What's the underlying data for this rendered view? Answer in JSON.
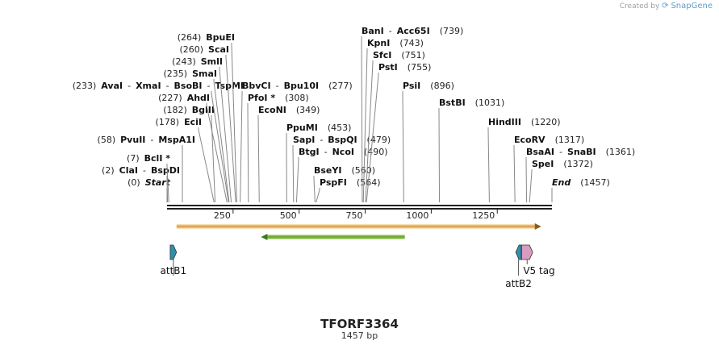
{
  "credit": {
    "prefix": "Created by",
    "brand": "SnapGene"
  },
  "plasmid": {
    "name": "TFORF3364",
    "length_label": "1457 bp",
    "length": 1457
  },
  "ruler": {
    "ticks": [
      250,
      500,
      750,
      1000,
      1250
    ]
  },
  "site_rows": [
    {
      "anchor": 207,
      "parts": [
        {
          "t": "(0)",
          "k": "pos"
        },
        {
          "t": "Start",
          "k": "italic"
        }
      ],
      "positions": [
        0
      ]
    },
    {
      "anchor": 207,
      "parts": [
        {
          "t": "(2)",
          "k": "pos"
        },
        {
          "t": "ClaI",
          "k": "name"
        },
        {
          "t": "-",
          "k": "sep"
        },
        {
          "t": "BspDI",
          "k": "name"
        }
      ],
      "positions": [
        2
      ]
    },
    {
      "anchor": 207,
      "parts": [
        {
          "t": "(7)",
          "k": "pos"
        },
        {
          "t": "BclI *",
          "k": "name"
        }
      ],
      "positions": [
        7
      ]
    },
    {
      "anchor": 226,
      "parts": [
        {
          "t": "(58)",
          "k": "pos"
        },
        {
          "t": "PvuII",
          "k": "name"
        },
        {
          "t": "-",
          "k": "sep"
        },
        {
          "t": "MspA1I",
          "k": "name"
        }
      ],
      "positions": [
        58
      ]
    },
    {
      "anchor": 246,
      "parts": [
        {
          "t": "(178)",
          "k": "pos"
        },
        {
          "t": "EciI",
          "k": "name"
        }
      ],
      "positions": [
        178
      ]
    },
    {
      "anchor": 262,
      "parts": [
        {
          "t": "(182)",
          "k": "pos"
        },
        {
          "t": "BglII",
          "k": "name"
        }
      ],
      "positions": [
        182
      ]
    },
    {
      "anchor": 256,
      "parts": [
        {
          "t": "(227)",
          "k": "pos"
        },
        {
          "t": "AhdI",
          "k": "name"
        }
      ],
      "positions": [
        227
      ]
    },
    {
      "anchor": 262,
      "parts": [
        {
          "t": "(233)",
          "k": "pos"
        },
        {
          "t": "AvaI",
          "k": "name"
        },
        {
          "t": "-",
          "k": "sep"
        },
        {
          "t": "XmaI",
          "k": "name"
        },
        {
          "t": "-",
          "k": "sep"
        },
        {
          "t": "BsoBI",
          "k": "name"
        },
        {
          "t": "-",
          "k": "sep"
        },
        {
          "t": "TspMI",
          "k": "name"
        }
      ],
      "positions": [
        233
      ]
    },
    {
      "anchor": 265,
      "parts": [
        {
          "t": "(235)",
          "k": "pos"
        },
        {
          "t": "SmaI",
          "k": "name"
        }
      ],
      "positions": [
        235
      ]
    },
    {
      "anchor": 272,
      "parts": [
        {
          "t": "(243)",
          "k": "pos"
        },
        {
          "t": "SmlI",
          "k": "name"
        }
      ],
      "positions": [
        243
      ]
    },
    {
      "anchor": 280,
      "parts": [
        {
          "t": "(260)",
          "k": "pos"
        },
        {
          "t": "ScaI",
          "k": "name"
        }
      ],
      "positions": [
        260
      ]
    },
    {
      "anchor": 287,
      "parts": [
        {
          "t": "(264)",
          "k": "pos"
        },
        {
          "t": "BpuEI",
          "k": "name"
        }
      ],
      "positions": [
        264
      ]
    },
    {
      "anchor": 300,
      "parts": [
        {
          "t": "BbvCI",
          "k": "name"
        },
        {
          "t": "-",
          "k": "sep"
        },
        {
          "t": "Bpu10I",
          "k": "name"
        },
        {
          "t": "(277)",
          "k": "pos"
        }
      ],
      "positions": [
        277
      ]
    },
    {
      "anchor": 307,
      "parts": [
        {
          "t": "PfoI *",
          "k": "name"
        },
        {
          "t": "(308)",
          "k": "pos"
        }
      ],
      "positions": [
        308
      ]
    },
    {
      "anchor": 320,
      "parts": [
        {
          "t": "EcoNI",
          "k": "name"
        },
        {
          "t": "(349)",
          "k": "pos"
        }
      ],
      "positions": [
        349
      ]
    },
    {
      "anchor": 355,
      "parts": [
        {
          "t": "PpuMI",
          "k": "name"
        },
        {
          "t": "(453)",
          "k": "pos"
        }
      ],
      "positions": [
        453
      ]
    },
    {
      "anchor": 363,
      "parts": [
        {
          "t": "SapI",
          "k": "name"
        },
        {
          "t": "-",
          "k": "sep"
        },
        {
          "t": "BspQI",
          "k": "name"
        },
        {
          "t": "(479)",
          "k": "pos"
        }
      ],
      "positions": [
        479
      ]
    },
    {
      "anchor": 370,
      "parts": [
        {
          "t": "BtgI",
          "k": "name"
        },
        {
          "t": "-",
          "k": "sep"
        },
        {
          "t": "NcoI",
          "k": "name"
        },
        {
          "t": "(490)",
          "k": "pos"
        }
      ],
      "positions": [
        490
      ]
    },
    {
      "anchor": 389,
      "parts": [
        {
          "t": "BseYI",
          "k": "name"
        },
        {
          "t": "(560)",
          "k": "pos"
        }
      ],
      "positions": [
        560
      ]
    },
    {
      "anchor": 396,
      "parts": [
        {
          "t": "PspFI",
          "k": "name"
        },
        {
          "t": "(564)",
          "k": "pos"
        }
      ],
      "positions": [
        564
      ]
    },
    {
      "anchor": 448,
      "parts": [
        {
          "t": "BanI",
          "k": "name"
        },
        {
          "t": "-",
          "k": "sep"
        },
        {
          "t": "Acc65I",
          "k": "name"
        },
        {
          "t": "(739)",
          "k": "pos"
        }
      ],
      "positions": [
        739
      ]
    },
    {
      "anchor": 455,
      "parts": [
        {
          "t": "KpnI",
          "k": "name"
        },
        {
          "t": "(743)",
          "k": "pos"
        }
      ],
      "positions": [
        743
      ]
    },
    {
      "anchor": 462,
      "parts": [
        {
          "t": "SfcI",
          "k": "name"
        },
        {
          "t": "(751)",
          "k": "pos"
        }
      ],
      "positions": [
        751
      ]
    },
    {
      "anchor": 469,
      "parts": [
        {
          "t": "PstI",
          "k": "name"
        },
        {
          "t": "(755)",
          "k": "pos"
        }
      ],
      "positions": [
        755
      ]
    },
    {
      "anchor": 499,
      "parts": [
        {
          "t": "PsiI",
          "k": "name"
        },
        {
          "t": "(896)",
          "k": "pos"
        }
      ],
      "positions": [
        896
      ]
    },
    {
      "anchor": 544,
      "parts": [
        {
          "t": "BstBI",
          "k": "name"
        },
        {
          "t": "(1031)",
          "k": "pos"
        }
      ],
      "positions": [
        1031
      ]
    },
    {
      "anchor": 605,
      "parts": [
        {
          "t": "HindIII",
          "k": "name"
        },
        {
          "t": "(1220)",
          "k": "pos"
        }
      ],
      "positions": [
        1220
      ]
    },
    {
      "anchor": 637,
      "parts": [
        {
          "t": "EcoRV",
          "k": "name"
        },
        {
          "t": "(1317)",
          "k": "pos"
        }
      ],
      "positions": [
        1317
      ]
    },
    {
      "anchor": 652,
      "parts": [
        {
          "t": "BsaAI",
          "k": "name"
        },
        {
          "t": "-",
          "k": "sep"
        },
        {
          "t": "SnaBI",
          "k": "name"
        },
        {
          "t": "(1361)",
          "k": "pos"
        }
      ],
      "positions": [
        1361
      ]
    },
    {
      "anchor": 659,
      "parts": [
        {
          "t": "SpeI",
          "k": "name"
        },
        {
          "t": "(1372)",
          "k": "pos"
        }
      ],
      "positions": [
        1372
      ]
    },
    {
      "anchor": 684,
      "parts": [
        {
          "t": "End",
          "k": "italic"
        },
        {
          "t": "(1457)",
          "k": "pos"
        }
      ],
      "positions": [
        1457
      ]
    }
  ],
  "features": [
    {
      "name": "ORF",
      "type": "orf-arrow",
      "start": 36,
      "end": 1392,
      "direction": "forward",
      "color": "#f5c16c"
    },
    {
      "name": "ORF",
      "type": "orf-arrow",
      "start": 380,
      "end": 900,
      "direction": "reverse",
      "color": "#7bc043"
    },
    {
      "name": "attB1",
      "type": "site",
      "start": 12,
      "end": 36,
      "direction": "forward",
      "color": "#2f8fa8",
      "label": "attB1"
    },
    {
      "name": "attB2",
      "type": "site",
      "start": 1320,
      "end": 1341,
      "direction": "reverse",
      "color": "#2f8fa8",
      "label": "attB2"
    },
    {
      "name": "V5 tag",
      "type": "tag",
      "start": 1342,
      "end": 1384,
      "direction": "forward",
      "color": "#d99bc0",
      "label": "V5 tag"
    }
  ],
  "colors": {
    "backbone": "#222222",
    "site_line": "#888888",
    "text": "#111111",
    "pos_text": "#222222"
  }
}
